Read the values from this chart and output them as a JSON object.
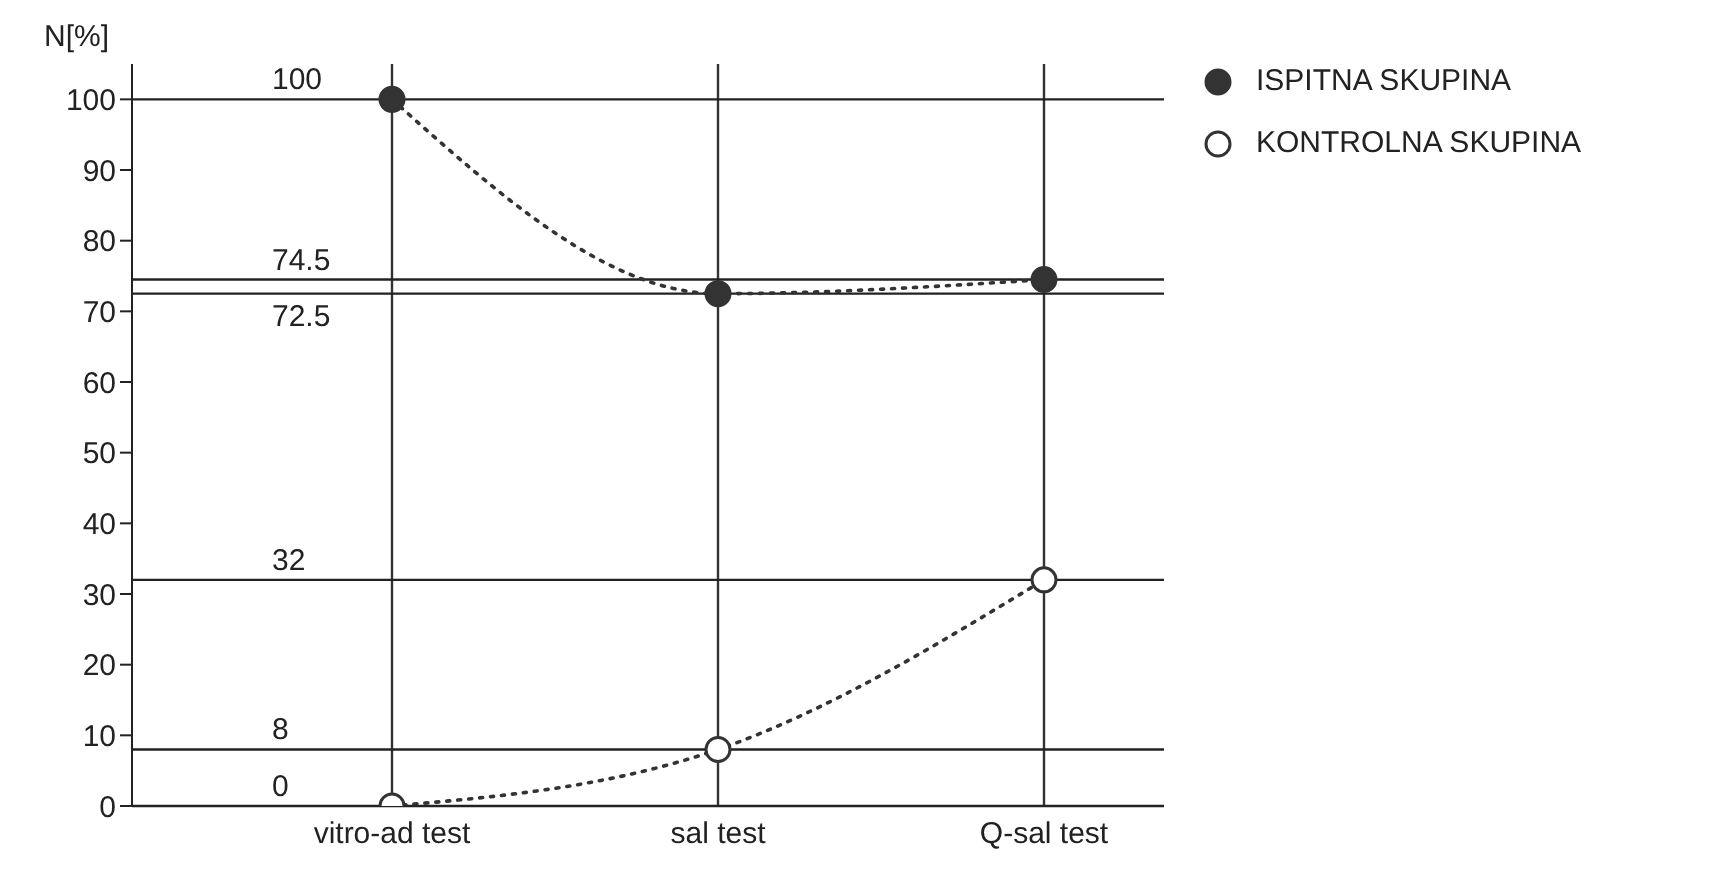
{
  "chart_data": {
    "type": "line",
    "ylabel": "N[%]",
    "categories": [
      "vitro-ad test",
      "sal test",
      "Q-sal test"
    ],
    "series": [
      {
        "name": "ISPITNA SKUPINA",
        "color": "#333333",
        "values": [
          100,
          72.5,
          74.5
        ]
      },
      {
        "name": "KONTROLNA SKUPINA",
        "color": "#333333",
        "values": [
          0,
          8,
          32
        ]
      }
    ],
    "ylim": [
      0,
      105
    ],
    "yticks": [
      0,
      10,
      20,
      30,
      40,
      50,
      60,
      70,
      80,
      90,
      100
    ],
    "ref_lines": [
      {
        "axis": "y",
        "value": 100,
        "label": "100"
      },
      {
        "axis": "y",
        "value": 74.5,
        "label": "74.5"
      },
      {
        "axis": "y",
        "value": 72.5,
        "label": "72.5"
      },
      {
        "axis": "y",
        "value": 32,
        "label": "32"
      },
      {
        "axis": "y",
        "value": 8,
        "label": "8"
      },
      {
        "axis": "y",
        "value": 0,
        "label": "0"
      }
    ],
    "grid": "x",
    "legend": "right",
    "marker": "circle",
    "line_style": "dotted"
  }
}
